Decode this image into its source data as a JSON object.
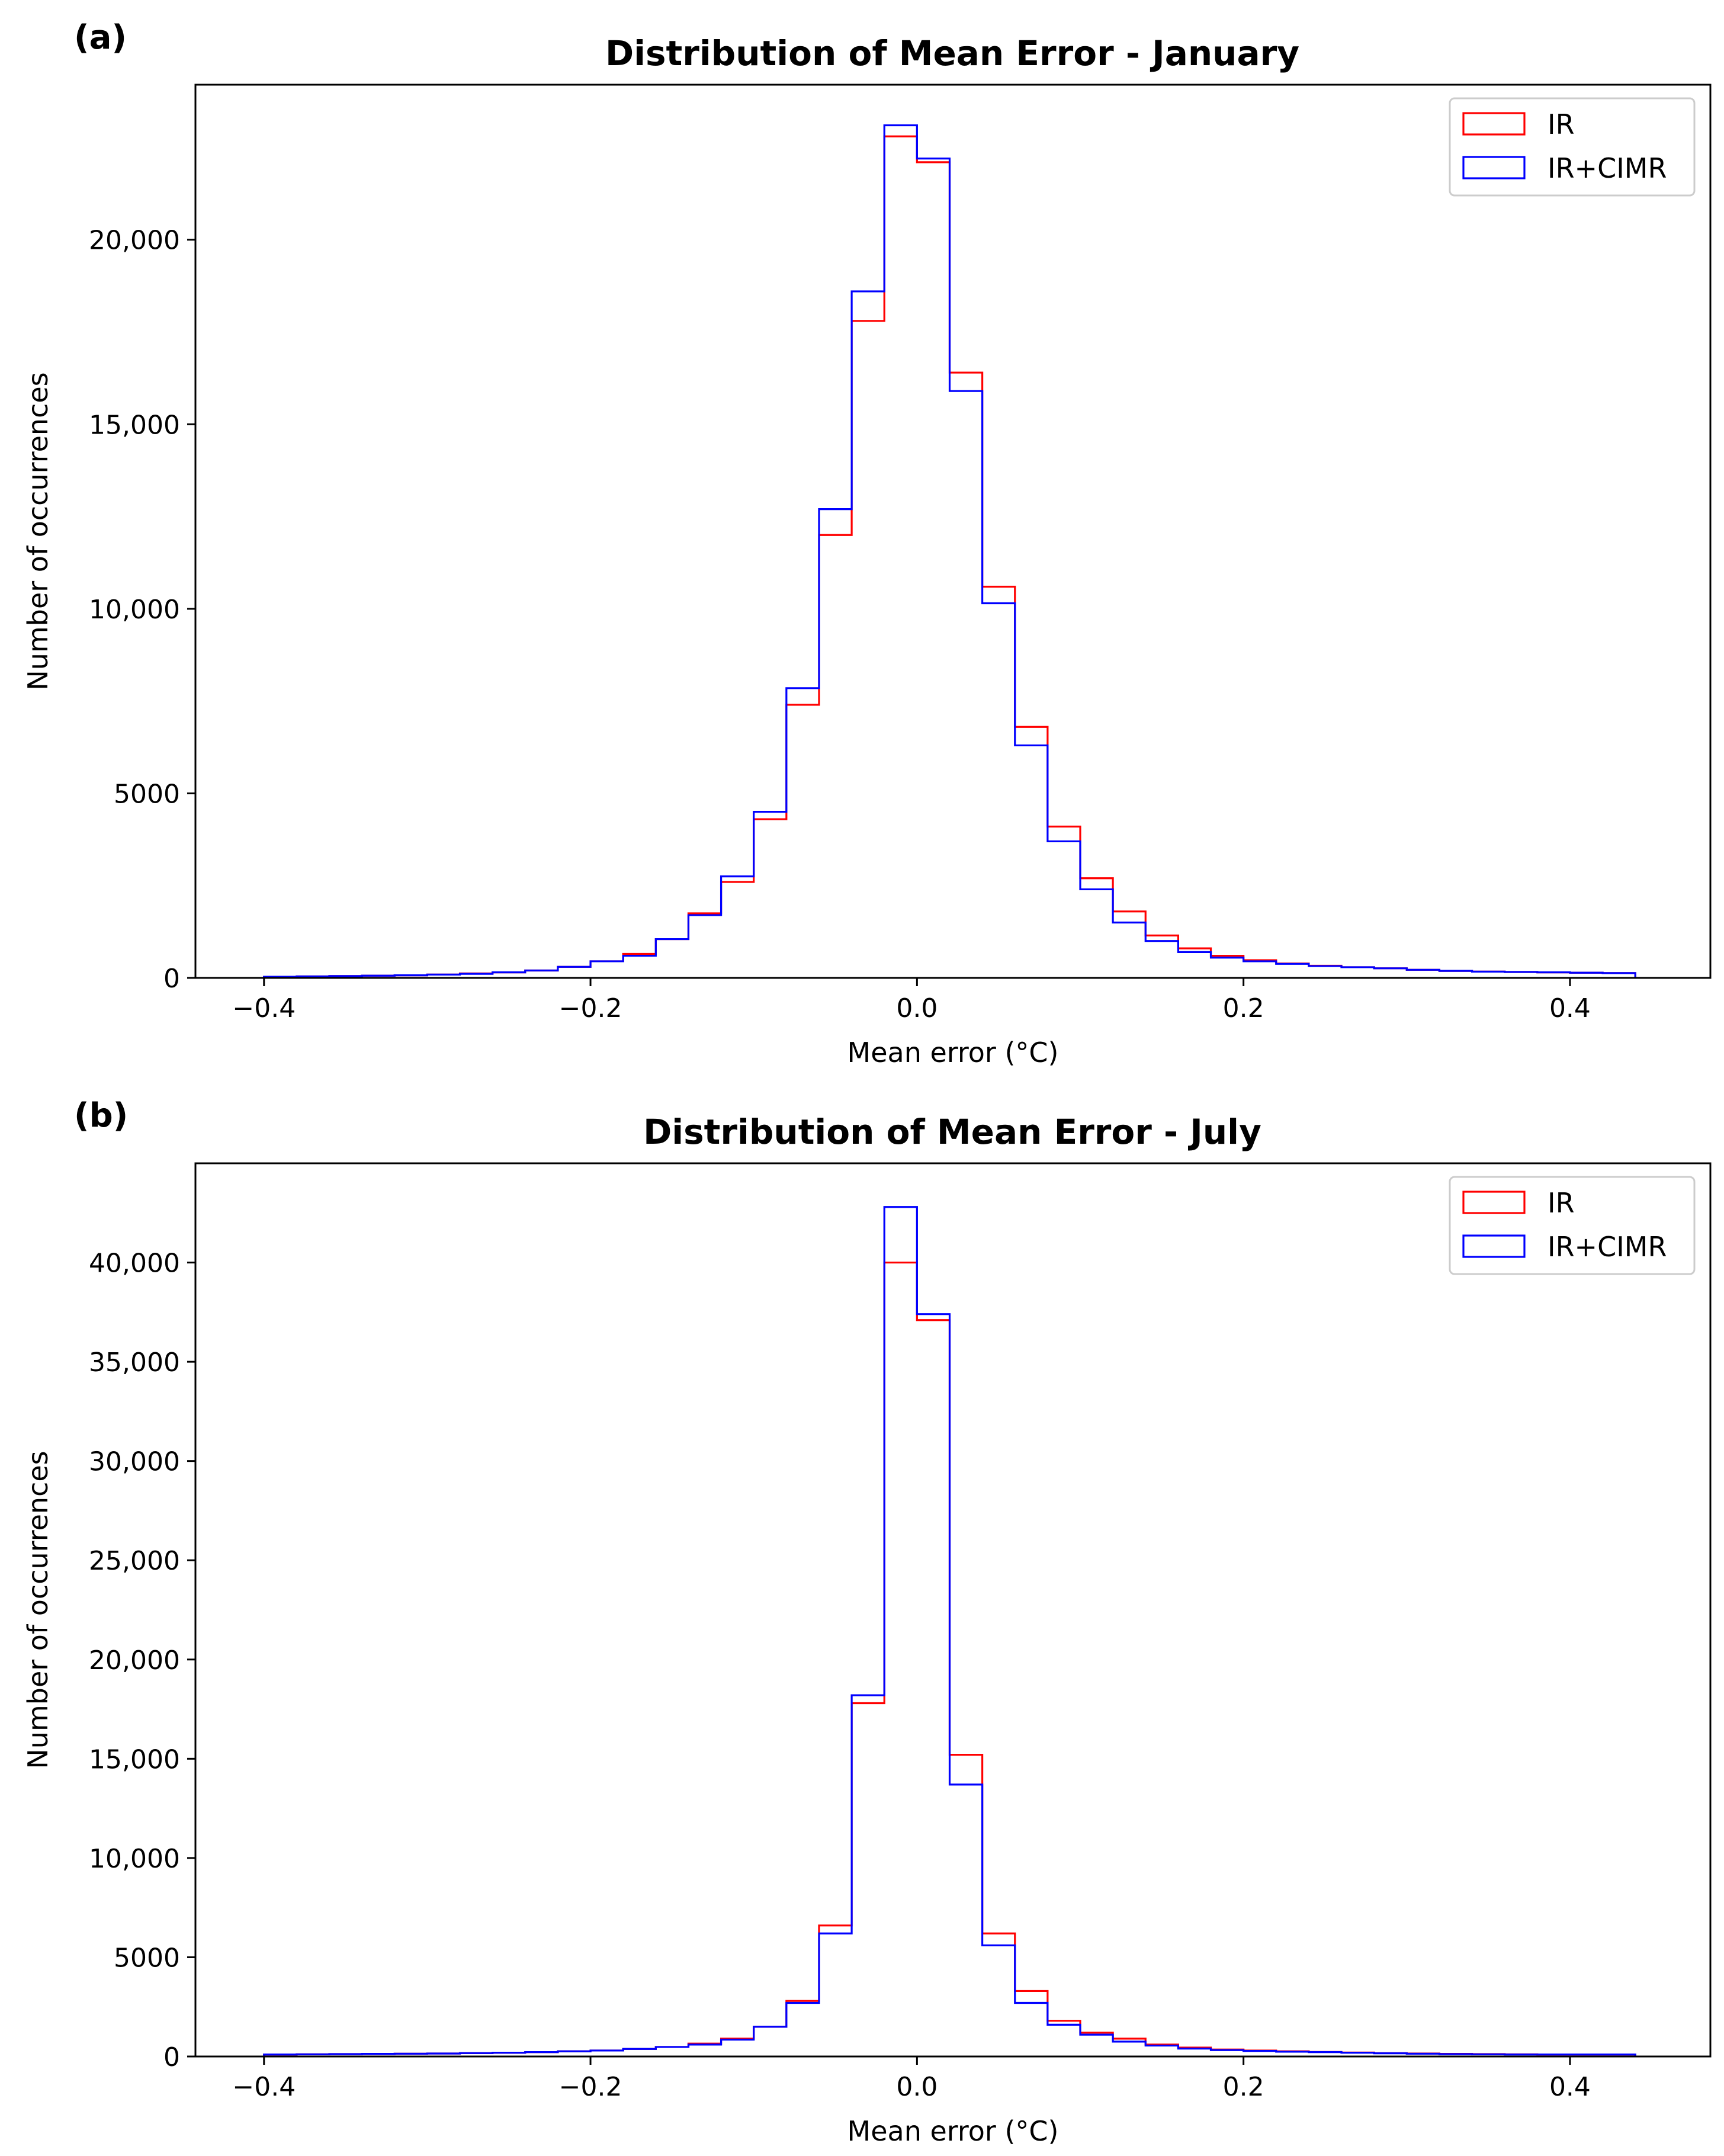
{
  "chart_data": [
    {
      "type": "histogram-step",
      "panel_label": "(a)",
      "title": "Distribution of Mean Error - January",
      "xlabel": "Mean error (°C)",
      "ylabel": "Number of occurrences",
      "xlim": [
        -0.442,
        0.486
      ],
      "ylim": [
        0,
        24200
      ],
      "xticks": [
        -0.4,
        -0.2,
        0.0,
        0.2,
        0.4
      ],
      "xtick_labels": [
        "−0.4",
        "−0.2",
        "0.0",
        "0.2",
        "0.4"
      ],
      "yticks": [
        0,
        5000,
        10000,
        15000,
        20000
      ],
      "ytick_labels": [
        "0",
        "5000",
        "10,000",
        "15,000",
        "20,000"
      ],
      "bin_edges": [
        -0.4,
        -0.38,
        -0.36,
        -0.34,
        -0.32,
        -0.3,
        -0.28,
        -0.26,
        -0.24,
        -0.22,
        -0.2,
        -0.18,
        -0.16,
        -0.14,
        -0.12,
        -0.1,
        -0.08,
        -0.06,
        -0.04,
        -0.02,
        0.0,
        0.02,
        0.04,
        0.06,
        0.08,
        0.1,
        0.12,
        0.14,
        0.16,
        0.18,
        0.2,
        0.22,
        0.24,
        0.26,
        0.28,
        0.3,
        0.32,
        0.34,
        0.36,
        0.38,
        0.4,
        0.42,
        0.44
      ],
      "legend": {
        "location": "upper right",
        "entries": [
          "IR",
          "IR+CIMR"
        ]
      },
      "series": [
        {
          "name": "IR",
          "color": "#ff0000",
          "values": [
            30,
            40,
            50,
            60,
            70,
            90,
            120,
            150,
            200,
            300,
            450,
            650,
            1050,
            1750,
            2600,
            4300,
            7400,
            12000,
            17800,
            22800,
            22100,
            16400,
            10600,
            6800,
            4100,
            2700,
            1800,
            1150,
            800,
            600,
            480,
            390,
            330,
            290,
            260,
            220,
            190,
            170,
            160,
            150,
            140,
            130
          ]
        },
        {
          "name": "IR+CIMR",
          "color": "#0000ff",
          "values": [
            30,
            40,
            50,
            60,
            70,
            90,
            110,
            150,
            200,
            300,
            450,
            600,
            1050,
            1700,
            2750,
            4500,
            7850,
            12700,
            18600,
            23100,
            22200,
            15900,
            10150,
            6300,
            3700,
            2400,
            1500,
            1000,
            700,
            550,
            450,
            380,
            320,
            290,
            260,
            220,
            190,
            170,
            160,
            150,
            140,
            130
          ]
        }
      ]
    },
    {
      "type": "histogram-step",
      "panel_label": "(b)",
      "title": "Distribution of Mean Error - July",
      "xlabel": "Mean error (°C)",
      "ylabel": "Number of occurrences",
      "xlim": [
        -0.442,
        0.486
      ],
      "ylim": [
        0,
        45000
      ],
      "xticks": [
        -0.4,
        -0.2,
        0.0,
        0.2,
        0.4
      ],
      "xtick_labels": [
        "−0.4",
        "−0.2",
        "0.0",
        "0.2",
        "0.4"
      ],
      "yticks": [
        0,
        5000,
        10000,
        15000,
        20000,
        25000,
        30000,
        35000,
        40000
      ],
      "ytick_labels": [
        "0",
        "5000",
        "10,000",
        "15,000",
        "20,000",
        "25,000",
        "30,000",
        "35,000",
        "40,000"
      ],
      "bin_edges": [
        -0.4,
        -0.38,
        -0.36,
        -0.34,
        -0.32,
        -0.3,
        -0.28,
        -0.26,
        -0.24,
        -0.22,
        -0.2,
        -0.18,
        -0.16,
        -0.14,
        -0.12,
        -0.1,
        -0.08,
        -0.06,
        -0.04,
        -0.02,
        0.0,
        0.02,
        0.04,
        0.06,
        0.08,
        0.1,
        0.12,
        0.14,
        0.16,
        0.18,
        0.2,
        0.22,
        0.24,
        0.26,
        0.28,
        0.3,
        0.32,
        0.34,
        0.36,
        0.38,
        0.4,
        0.42,
        0.44
      ],
      "legend": {
        "location": "upper right",
        "entries": [
          "IR",
          "IR+CIMR"
        ]
      },
      "series": [
        {
          "name": "IR",
          "color": "#ff0000",
          "values": [
            100,
            110,
            120,
            130,
            140,
            150,
            170,
            190,
            220,
            260,
            300,
            380,
            480,
            650,
            900,
            1500,
            2800,
            6600,
            17800,
            40000,
            37100,
            15200,
            6200,
            3300,
            1800,
            1200,
            900,
            600,
            450,
            350,
            300,
            260,
            230,
            200,
            170,
            150,
            130,
            120,
            110,
            100,
            100,
            100
          ]
        },
        {
          "name": "IR+CIMR",
          "color": "#0000ff",
          "values": [
            100,
            110,
            120,
            130,
            140,
            150,
            170,
            190,
            220,
            260,
            300,
            380,
            480,
            600,
            850,
            1500,
            2700,
            6200,
            18200,
            42800,
            37400,
            13700,
            5600,
            2700,
            1600,
            1100,
            750,
            550,
            400,
            320,
            280,
            240,
            220,
            190,
            160,
            140,
            120,
            110,
            100,
            100,
            100,
            100
          ]
        }
      ]
    }
  ]
}
